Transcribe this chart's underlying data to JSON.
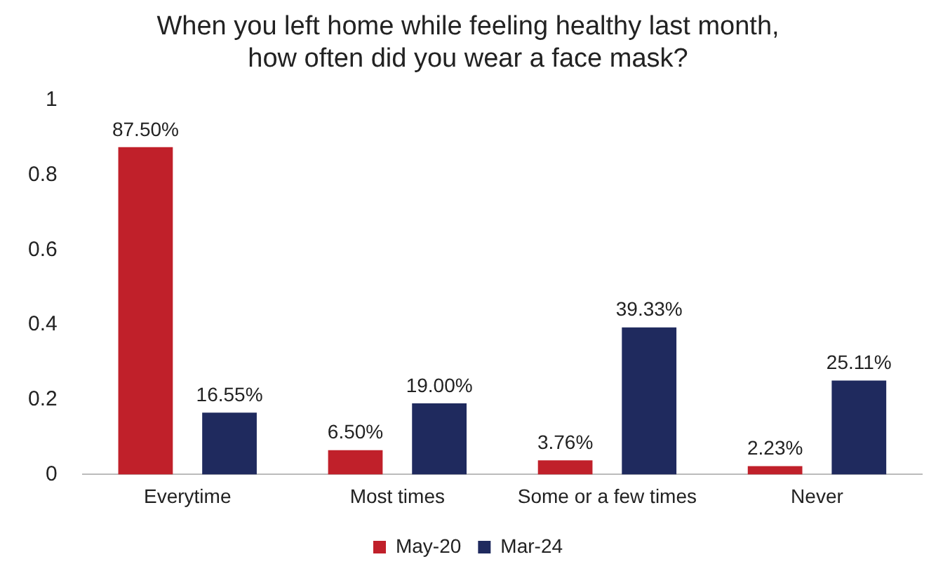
{
  "chart_data": {
    "type": "bar",
    "title": "When you left home while feeling healthy last month,\nhow often did you wear a face mask?",
    "categories": [
      "Everytime",
      "Most times",
      "Some or a few times",
      "Never"
    ],
    "series": [
      {
        "name": "May-20",
        "color": "#c0202a",
        "values": [
          0.875,
          0.065,
          0.0376,
          0.0223
        ],
        "value_labels": [
          "87.50%",
          "6.50%",
          "3.76%",
          "2.23%"
        ]
      },
      {
        "name": "Mar-24",
        "color": "#1f2a5e",
        "values": [
          0.1655,
          0.19,
          0.3933,
          0.2511
        ],
        "value_labels": [
          "16.55%",
          "19.00%",
          "39.33%",
          "25.11%"
        ]
      }
    ],
    "ylim": [
      0,
      1
    ],
    "yticks": [
      0,
      0.2,
      0.4,
      0.6,
      0.8,
      1
    ],
    "grid": false,
    "legend": "bottom"
  }
}
